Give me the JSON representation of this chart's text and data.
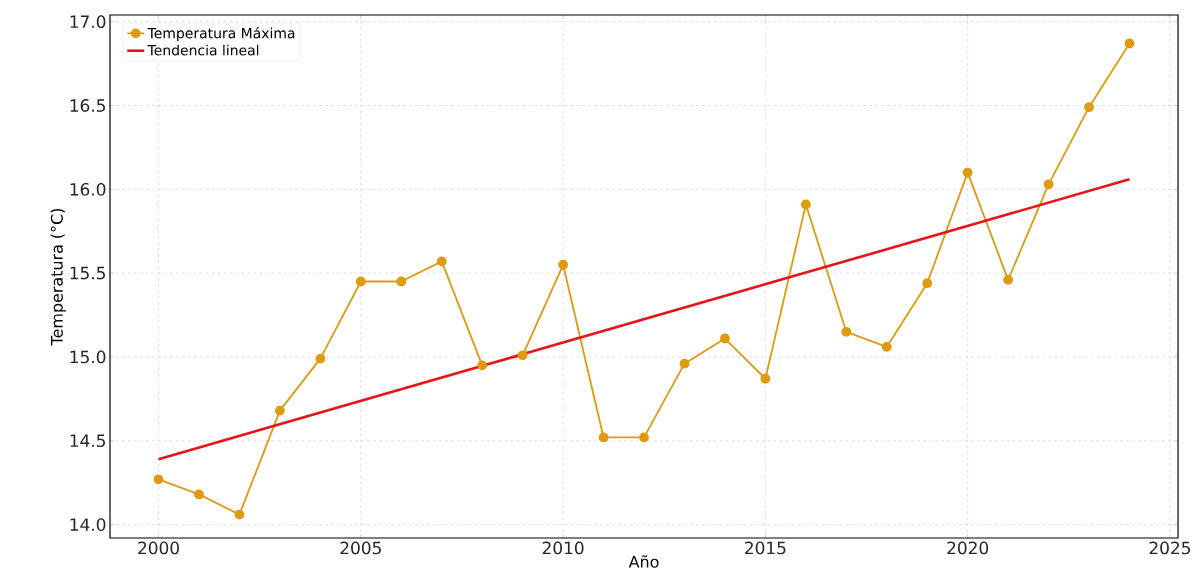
{
  "chart_data": {
    "type": "line",
    "xlabel": "Año",
    "ylabel": "Temperatura (°C)",
    "x": [
      2000,
      2001,
      2002,
      2003,
      2004,
      2005,
      2006,
      2007,
      2008,
      2009,
      2010,
      2011,
      2012,
      2013,
      2014,
      2015,
      2016,
      2017,
      2018,
      2019,
      2020,
      2021,
      2022,
      2023,
      2024
    ],
    "series": [
      {
        "name": "Temperatura Máxima",
        "color": "#e09a10",
        "marker": "circle",
        "values": [
          14.27,
          14.18,
          14.06,
          14.68,
          14.99,
          15.45,
          15.45,
          15.57,
          14.95,
          15.01,
          15.55,
          14.52,
          14.52,
          14.96,
          15.11,
          14.87,
          15.91,
          15.15,
          15.06,
          15.44,
          16.1,
          15.46,
          16.03,
          16.49,
          16.87
        ]
      },
      {
        "name": "Tendencia lineal",
        "color": "#e8141a",
        "marker": "none",
        "x": [
          2000,
          2024
        ],
        "values": [
          14.39,
          16.06
        ]
      }
    ],
    "xlim": [
      1998.8,
      2025.2
    ],
    "ylim": [
      13.92,
      17.04
    ],
    "xticks": [
      2000,
      2005,
      2010,
      2015,
      2020,
      2025
    ],
    "yticks": [
      {
        "value": 14.0,
        "label": "14.0"
      },
      {
        "value": 14.5,
        "label": "14.5"
      },
      {
        "value": 15.0,
        "label": "15.0"
      },
      {
        "value": 15.5,
        "label": "15.5"
      },
      {
        "value": 16.0,
        "label": "16.0"
      },
      {
        "value": 16.5,
        "label": "16.5"
      },
      {
        "value": 17.0,
        "label": "17.0"
      }
    ],
    "grid": true,
    "legend": "top left",
    "line_style": "solid"
  }
}
